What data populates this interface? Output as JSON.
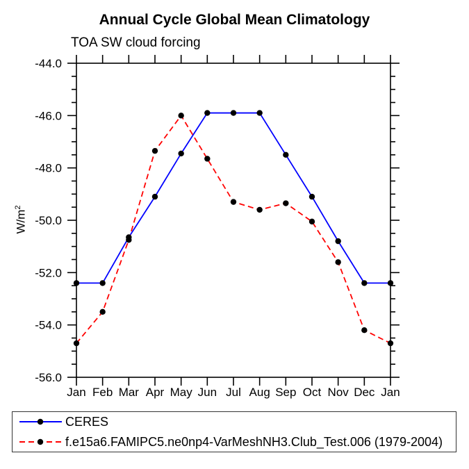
{
  "figure": {
    "title": "Annual Cycle Global Mean Climatology",
    "subtitle": "TOA SW cloud forcing",
    "ylabel_base": "W/m",
    "ylabel_sup": "2"
  },
  "chart_data": {
    "type": "line",
    "title": "Annual Cycle Global Mean Climatology",
    "subtitle": "TOA SW cloud forcing",
    "xlabel": "",
    "ylabel": "W/m^2",
    "categories": [
      "Jan",
      "Feb",
      "Mar",
      "Apr",
      "May",
      "Jun",
      "Jul",
      "Aug",
      "Sep",
      "Oct",
      "Nov",
      "Dec",
      "Jan"
    ],
    "ylim": [
      -56.0,
      -44.0
    ],
    "y_major_tick_step": 2.0,
    "y_minor_tick_step": 0.5,
    "y_tick_labels": [
      "-44.0",
      "-46.0",
      "-48.0",
      "-50.0",
      "-52.0",
      "-54.0",
      "-56.0"
    ],
    "grid": false,
    "legend_position": "bottom-left boxed",
    "axis_color": "#000000",
    "background_color": "#ffffff",
    "series": [
      {
        "name": "CERES",
        "color": "#0000ff",
        "line_style": "solid",
        "marker": "filled-circle",
        "marker_color": "#000000",
        "values": [
          -52.4,
          -52.4,
          -50.65,
          -49.1,
          -47.45,
          -45.9,
          -45.9,
          -45.9,
          -47.5,
          -49.1,
          -50.8,
          -52.4,
          -52.4
        ]
      },
      {
        "name": "f.e15a6.FAMIPC5.ne0np4-VarMeshNH3.Club_Test.006 (1979-2004)",
        "color": "#ff0000",
        "line_style": "dashed",
        "marker": "filled-circle",
        "marker_color": "#000000",
        "values": [
          -54.7,
          -53.5,
          -50.75,
          -47.35,
          -46.0,
          -47.65,
          -49.3,
          -49.6,
          -49.35,
          -50.05,
          -51.6,
          -54.2,
          -54.7
        ]
      }
    ]
  }
}
